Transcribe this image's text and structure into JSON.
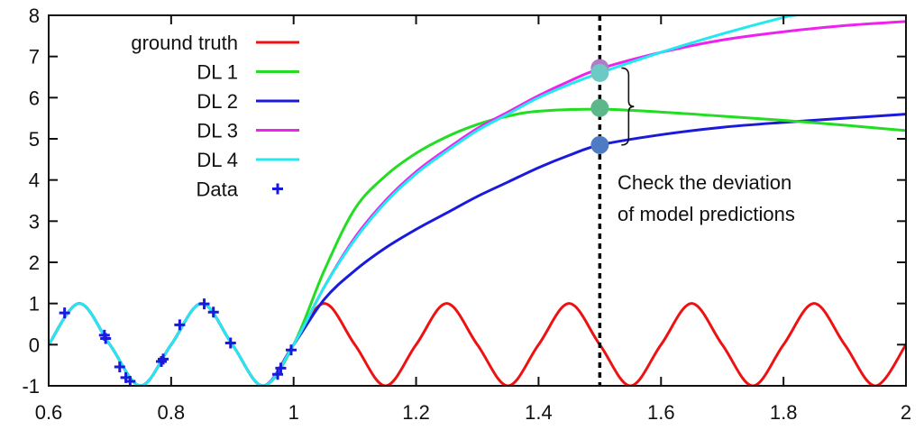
{
  "chart_data": {
    "type": "line",
    "title": "",
    "xlabel": "",
    "ylabel": "",
    "xlim": [
      0.6,
      2.0
    ],
    "ylim": [
      -1,
      8
    ],
    "grid": false,
    "legend_placement": "top-left",
    "x_ticks": [
      "0.6",
      "0.8",
      "1",
      "1.2",
      "1.4",
      "1.6",
      "1.8",
      "2"
    ],
    "y_ticks": [
      "-1",
      "0",
      "1",
      "2",
      "3",
      "4",
      "5",
      "6",
      "7",
      "8"
    ],
    "series": [
      {
        "name": "ground truth",
        "color": "#ee1111",
        "x": [
          0.6,
          0.65,
          0.7,
          0.75,
          0.8,
          0.85,
          0.9,
          0.95,
          1.0,
          1.05,
          1.1,
          1.15,
          1.2,
          1.25,
          1.3,
          1.35,
          1.4,
          1.45,
          1.5,
          1.55,
          1.6,
          1.65,
          1.7,
          1.75,
          1.8,
          1.85,
          1.9,
          1.95,
          2.0
        ],
        "y": [
          0,
          1,
          0,
          -1,
          0,
          1,
          0,
          -1,
          0,
          1,
          0,
          -1,
          0,
          1,
          0,
          -1,
          0,
          1,
          0,
          -1,
          0,
          1,
          0,
          -1,
          0,
          1,
          0,
          -1,
          0
        ]
      },
      {
        "name": "DL 1",
        "color": "#22dd22",
        "x": [
          0.6,
          0.65,
          0.7,
          0.75,
          0.8,
          0.85,
          0.9,
          0.95,
          1.0,
          1.05,
          1.1,
          1.15,
          1.2,
          1.25,
          1.3,
          1.35,
          1.4,
          1.5,
          1.6,
          1.7,
          1.8,
          1.9,
          2.0
        ],
        "y": [
          0,
          1,
          0,
          -1,
          0,
          1,
          0,
          -1,
          0,
          1.8,
          3.3,
          4.1,
          4.65,
          5.05,
          5.35,
          5.55,
          5.67,
          5.72,
          5.65,
          5.55,
          5.45,
          5.33,
          5.2
        ]
      },
      {
        "name": "DL 2",
        "color": "#1a1add",
        "x": [
          0.6,
          0.65,
          0.7,
          0.75,
          0.8,
          0.85,
          0.9,
          0.95,
          1.0,
          1.05,
          1.1,
          1.15,
          1.2,
          1.25,
          1.3,
          1.35,
          1.4,
          1.45,
          1.5,
          1.6,
          1.7,
          1.8,
          1.9,
          2.0
        ],
        "y": [
          0,
          1,
          0,
          -1,
          0,
          1,
          0,
          -1,
          0,
          1.1,
          1.8,
          2.35,
          2.8,
          3.2,
          3.6,
          3.95,
          4.3,
          4.6,
          4.85,
          5.1,
          5.28,
          5.4,
          5.5,
          5.6
        ]
      },
      {
        "name": "DL 3",
        "color": "#ee22ee",
        "x": [
          0.6,
          0.65,
          0.7,
          0.75,
          0.8,
          0.85,
          0.9,
          0.95,
          1.0,
          1.05,
          1.1,
          1.15,
          1.2,
          1.25,
          1.3,
          1.35,
          1.4,
          1.45,
          1.5,
          1.6,
          1.7,
          1.8,
          1.9,
          2.0
        ],
        "y": [
          0,
          1,
          0,
          -1,
          0,
          1,
          0,
          -1,
          0,
          1.4,
          2.6,
          3.5,
          4.2,
          4.75,
          5.25,
          5.65,
          6.05,
          6.4,
          6.7,
          7.1,
          7.4,
          7.6,
          7.75,
          7.85
        ]
      },
      {
        "name": "DL 4",
        "color": "#22e8f0",
        "x": [
          0.6,
          0.65,
          0.7,
          0.75,
          0.8,
          0.85,
          0.9,
          0.95,
          1.0,
          1.05,
          1.1,
          1.15,
          1.2,
          1.25,
          1.3,
          1.35,
          1.4,
          1.45,
          1.5,
          1.6,
          1.7,
          1.8,
          1.82
        ],
        "y": [
          0,
          1,
          0,
          -1,
          0,
          1,
          0,
          -1,
          0,
          1.4,
          2.55,
          3.45,
          4.15,
          4.7,
          5.2,
          5.6,
          6.0,
          6.32,
          6.6,
          7.1,
          7.55,
          7.95,
          8.0
        ]
      },
      {
        "name": "Data",
        "color": "#1a1add",
        "marker": "plus",
        "x": [
          0.626,
          0.691,
          0.693,
          0.716,
          0.726,
          0.733,
          0.784,
          0.787,
          0.814,
          0.854,
          0.869,
          0.897,
          0.974,
          0.979,
          0.996
        ],
        "y": [
          0.77,
          0.23,
          0.15,
          -0.54,
          -0.8,
          -0.89,
          -0.41,
          -0.35,
          0.48,
          0.99,
          0.79,
          0.04,
          -0.72,
          -0.57,
          -0.13
        ]
      }
    ],
    "vertical_line": {
      "x": 1.5,
      "style": "dotted",
      "color": "#000000"
    },
    "highlight_points": [
      {
        "x": 1.5,
        "y": 6.72,
        "color": "#b07cc6"
      },
      {
        "x": 1.5,
        "y": 6.6,
        "color": "#6cc9c4"
      },
      {
        "x": 1.5,
        "y": 5.75,
        "color": "#5cb88a"
      },
      {
        "x": 1.5,
        "y": 4.85,
        "color": "#4e7cc4"
      }
    ],
    "annotation": {
      "lines": [
        "Check the deviation",
        "of model predictions"
      ]
    }
  }
}
